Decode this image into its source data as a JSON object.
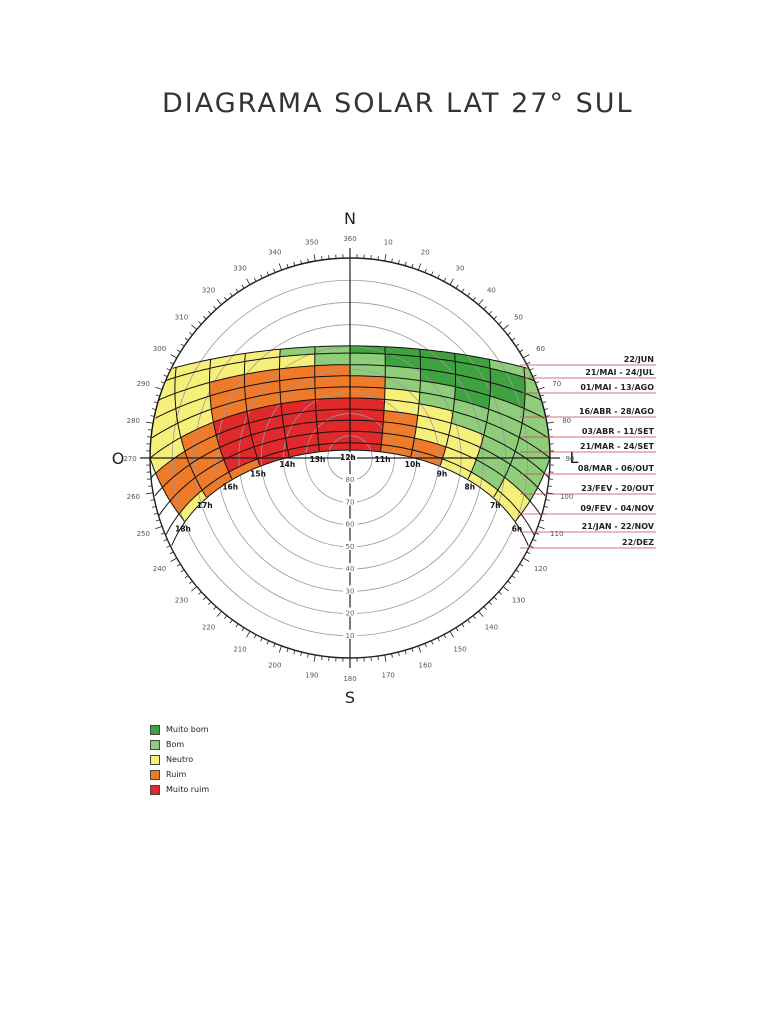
{
  "title": "DIAGRAMA SOLAR LAT 27° SUL",
  "cardinals": {
    "north": "N",
    "south": "S",
    "west": "O",
    "east": "L"
  },
  "azimuth_labels": [
    "360",
    "10",
    "20",
    "30",
    "40",
    "50",
    "60",
    "70",
    "80",
    "90",
    "100",
    "110",
    "120",
    "130",
    "140",
    "150",
    "160",
    "170",
    "180",
    "190",
    "200",
    "210",
    "220",
    "230",
    "240",
    "250",
    "260",
    "270",
    "280",
    "290",
    "300",
    "310",
    "320",
    "330",
    "340",
    "350"
  ],
  "altitude_labels": [
    "10",
    "20",
    "30",
    "40",
    "50",
    "60",
    "70",
    "80",
    "90"
  ],
  "hour_labels": [
    "6h",
    "7h",
    "8h",
    "9h",
    "10h",
    "11h",
    "12h",
    "13h",
    "14h",
    "15h",
    "16h",
    "17h",
    "18h"
  ],
  "date_labels": [
    "22/JUN",
    "21/MAI - 24/JUL",
    "01/MAI - 13/AGO",
    "16/ABR - 28/AGO",
    "03/ABR - 11/SET",
    "21/MAR - 24/SET",
    "08/MAR - 06/OUT",
    "23/FEV - 20/OUT",
    "09/FEV - 04/NOV",
    "21/JAN - 22/NOV",
    "22/DEZ"
  ],
  "legend": [
    {
      "label": "Muito bom",
      "color": "#3ea33e"
    },
    {
      "label": "Bom",
      "color": "#8fcd7a"
    },
    {
      "label": "Neutro",
      "color": "#f6f07a"
    },
    {
      "label": "Ruim",
      "color": "#ee7a2a"
    },
    {
      "label": "Muito ruim",
      "color": "#e0292a"
    }
  ]
}
